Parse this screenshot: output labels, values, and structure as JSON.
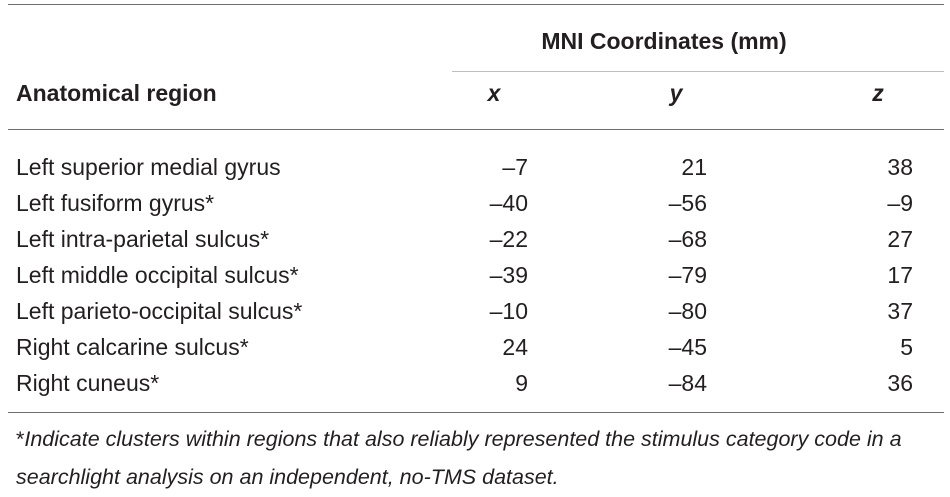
{
  "table": {
    "group_header": "MNI Coordinates (mm)",
    "columns": {
      "region": "Anatomical region",
      "x": "x",
      "y": "y",
      "z": "z"
    },
    "rows": [
      {
        "region": "Left superior medial gyrus",
        "x": "–7",
        "y": "21",
        "z": "38"
      },
      {
        "region": "Left fusiform gyrus*",
        "x": "–40",
        "y": "–56",
        "z": "–9"
      },
      {
        "region": "Left intra-parietal sulcus*",
        "x": "–22",
        "y": "–68",
        "z": "27"
      },
      {
        "region": "Left middle occipital sulcus*",
        "x": "–39",
        "y": "–79",
        "z": "17"
      },
      {
        "region": "Left parieto-occipital sulcus*",
        "x": "–10",
        "y": "–80",
        "z": "37"
      },
      {
        "region": "Right calcarine sulcus*",
        "x": "24",
        "y": "–45",
        "z": "5"
      },
      {
        "region": "Right cuneus*",
        "x": "9",
        "y": "–84",
        "z": "36"
      }
    ]
  },
  "footnote": {
    "marker": "*",
    "text": "Indicate clusters within regions that also reliably represented the stimulus category code in a searchlight analysis on an independent, no-TMS dataset."
  }
}
